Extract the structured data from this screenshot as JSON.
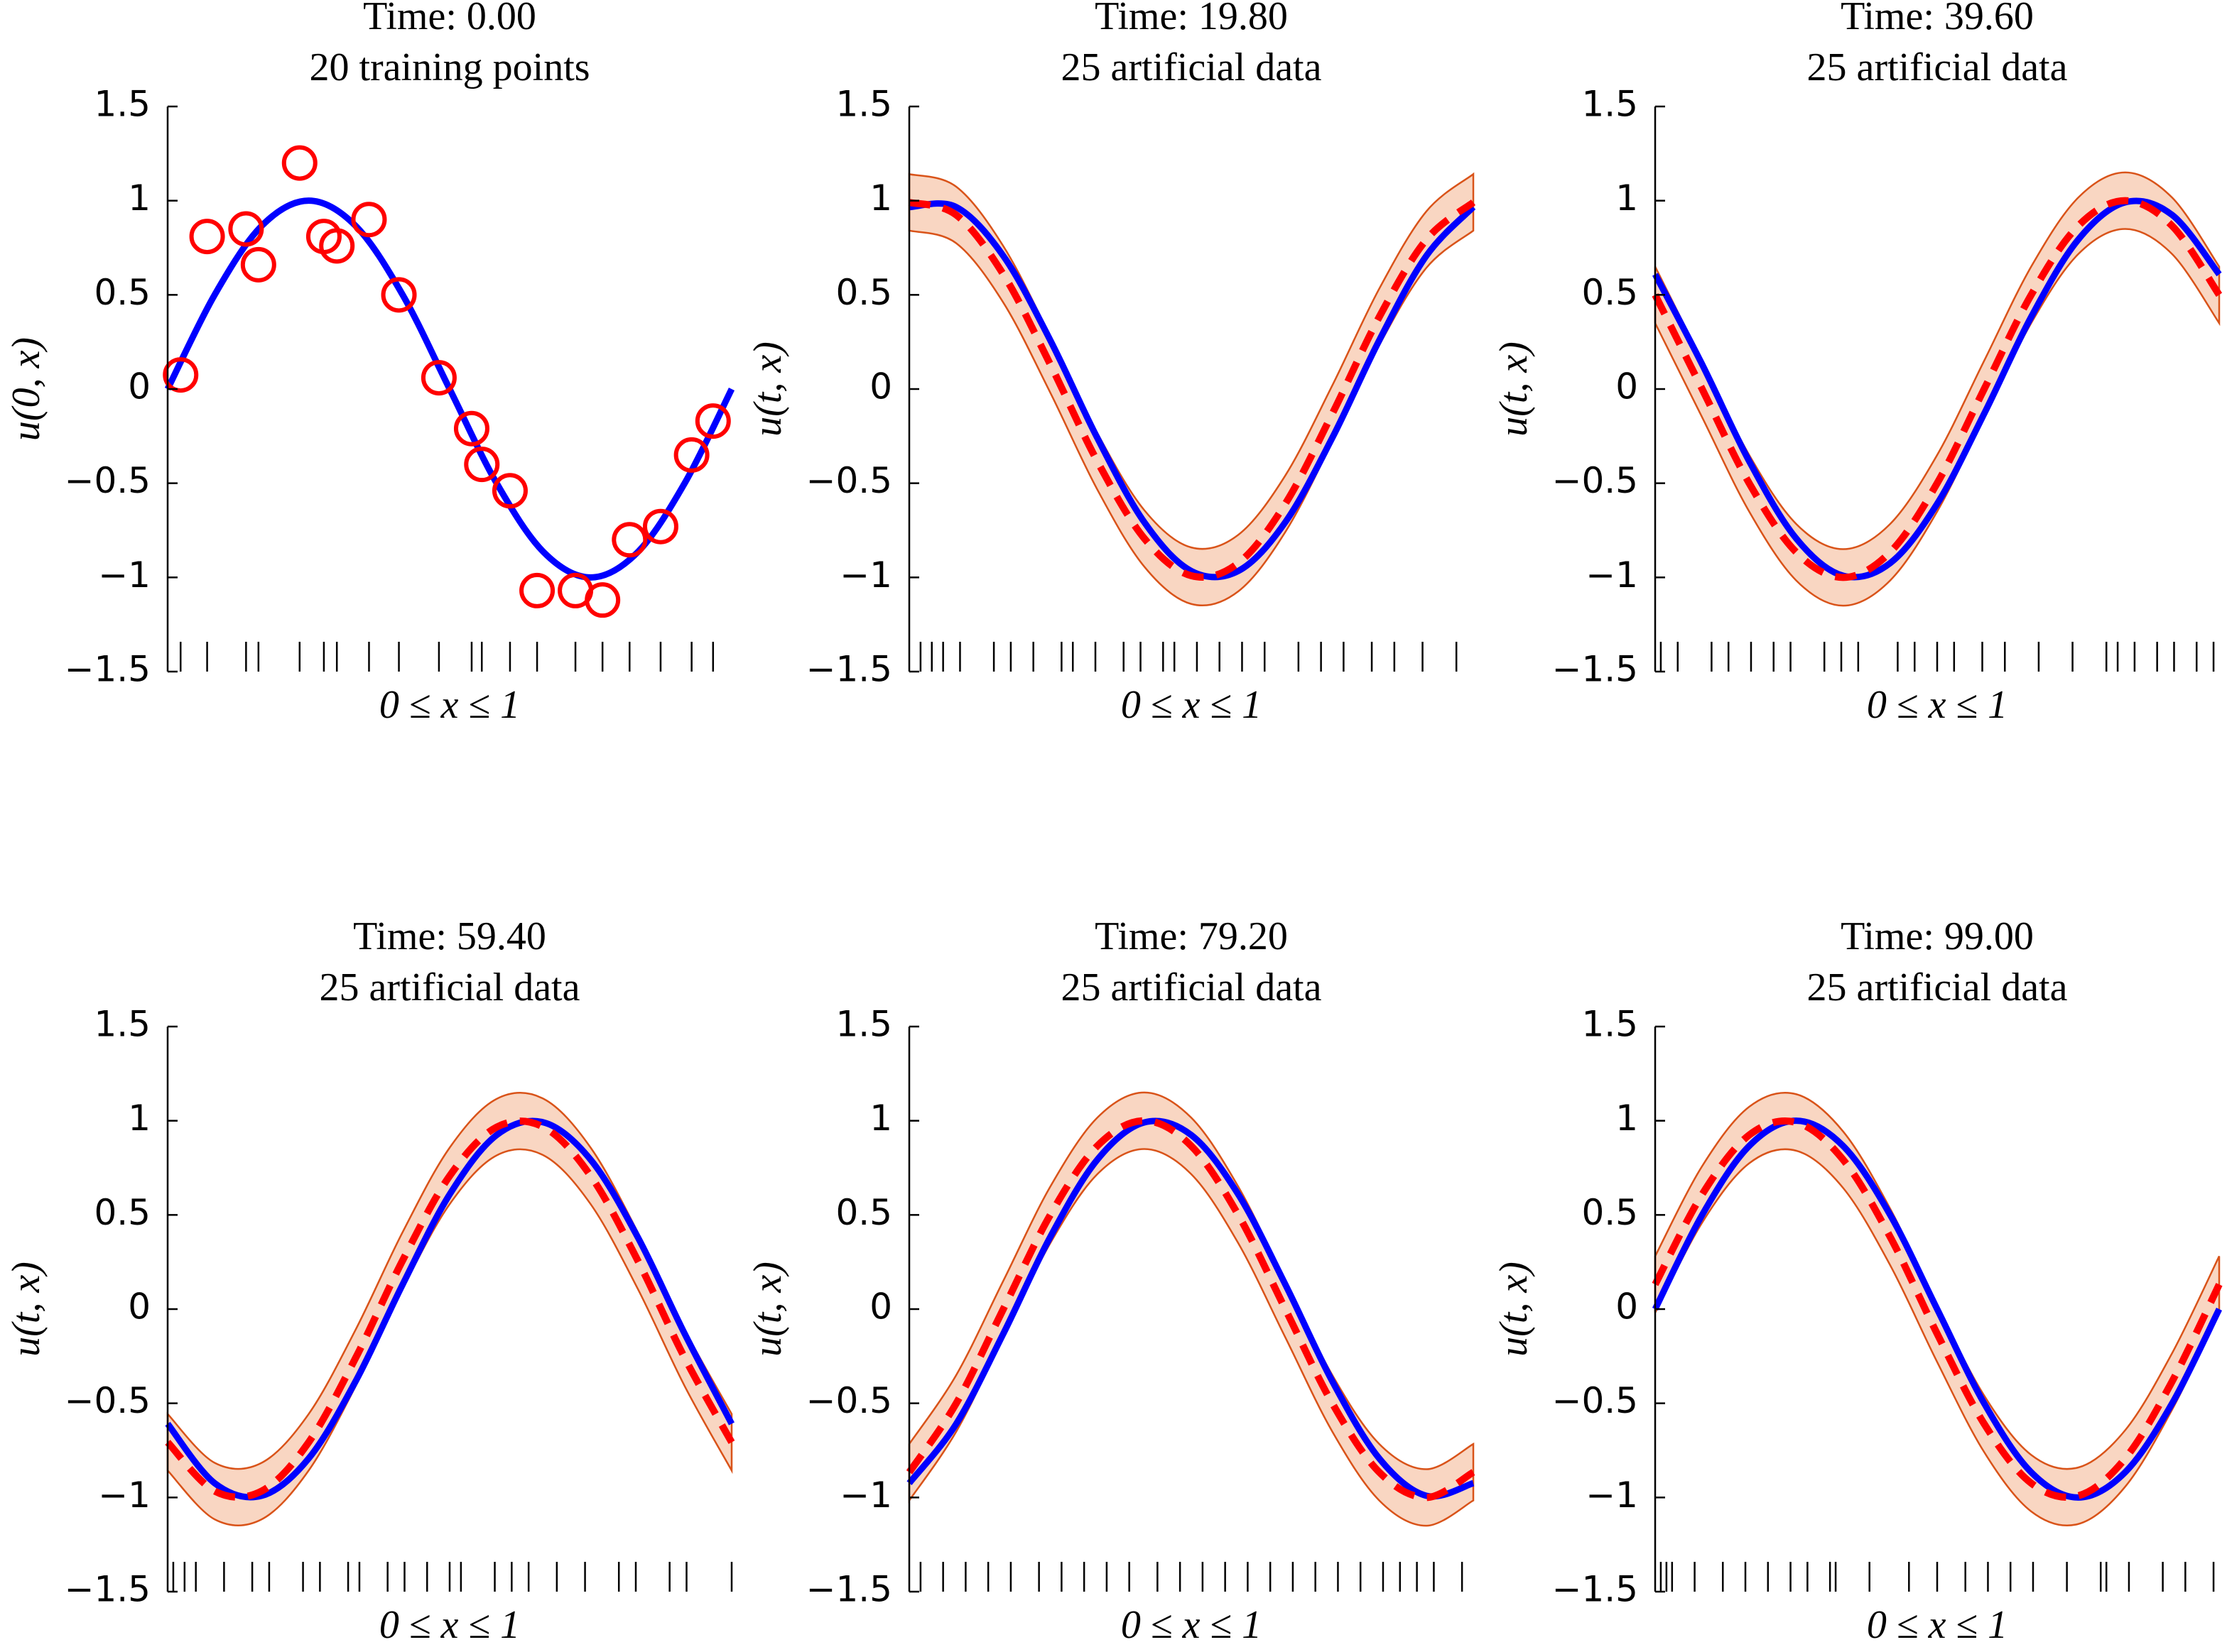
{
  "chart_data": [
    {
      "type": "line",
      "title": "Time: 0.00",
      "subtitle": "20 training points",
      "ylabel": "u(0, x)",
      "xlabel": "0 ≤ x ≤ 1",
      "xlim": [
        0,
        1
      ],
      "ylim": [
        -1.5,
        1.5
      ],
      "yticks": [
        {
          "value": -1.5,
          "label": "−1.5"
        },
        {
          "value": -1,
          "label": "−1"
        },
        {
          "value": -0.5,
          "label": "−0.5"
        },
        0,
        0.5,
        1,
        1.5
      ],
      "x": [
        0,
        0.0833,
        0.1667,
        0.25,
        0.3333,
        0.4167,
        0.5,
        0.5833,
        0.6667,
        0.75,
        0.8333,
        0.9167,
        1
      ],
      "series": [
        {
          "color": "#0000ff",
          "linestyle": "solid",
          "values": [
            0,
            0.5,
            0.866,
            1,
            0.866,
            0.5,
            0,
            -0.5,
            -0.866,
            -1,
            -0.866,
            -0.5,
            0
          ]
        }
      ],
      "points": {
        "color": "#ff0000",
        "x": [
          0.023,
          0.07,
          0.139,
          0.161,
          0.234,
          0.277,
          0.3,
          0.357,
          0.41,
          0.481,
          0.539,
          0.557,
          0.607,
          0.655,
          0.723,
          0.771,
          0.819,
          0.874,
          0.929,
          0.967
        ],
        "values": [
          0.075,
          0.81,
          0.85,
          0.66,
          1.2,
          0.81,
          0.76,
          0.9,
          0.5,
          0.06,
          -0.21,
          -0.4,
          -0.54,
          -1.07,
          -1.07,
          -1.12,
          -0.8,
          -0.73,
          -0.35,
          -0.17
        ]
      }
    },
    {
      "type": "line",
      "title": "Time: 19.80",
      "subtitle": "25 artificial data",
      "ylabel": "u(t, x)",
      "xlabel": "0 ≤ x ≤ 1",
      "xlim": [
        0,
        1
      ],
      "ylim": [
        -1.5,
        1.5
      ],
      "yticks": [
        {
          "value": -1.5,
          "label": "−1.5"
        },
        {
          "value": -1,
          "label": "−1"
        },
        {
          "value": -0.5,
          "label": "−0.5"
        },
        0,
        0.5,
        1,
        1.5
      ],
      "x": [
        0,
        0.0833,
        0.1667,
        0.25,
        0.3333,
        0.4167,
        0.5,
        0.5833,
        0.6667,
        0.75,
        0.8333,
        0.9167,
        1
      ],
      "band": {
        "color": "#f9d6c2",
        "edge": "#d95319",
        "upper": [
          1.141,
          1.074,
          0.759,
          0.281,
          -0.233,
          -0.643,
          -0.841,
          -0.774,
          -0.459,
          0.019,
          0.533,
          0.943,
          1.141
        ],
        "lower": [
          0.841,
          0.774,
          0.459,
          -0.019,
          -0.533,
          -0.943,
          -1.141,
          -1.074,
          -0.759,
          -0.281,
          0.233,
          0.643,
          0.841
        ]
      },
      "series": [
        {
          "color": "#0000ff",
          "linestyle": "solid",
          "values": [
            0.966,
            0.966,
            0.707,
            0.259,
            -0.259,
            -0.707,
            -0.966,
            -0.966,
            -0.707,
            -0.259,
            0.259,
            0.707,
            0.966
          ]
        },
        {
          "color": "#ff0000",
          "linestyle": "dashed",
          "values": [
            0.991,
            0.924,
            0.609,
            0.131,
            -0.383,
            -0.793,
            -0.991,
            -0.924,
            -0.609,
            -0.131,
            0.383,
            0.793,
            0.991
          ]
        }
      ],
      "rug_x": [
        0.02,
        0.04,
        0.06,
        0.09,
        0.15,
        0.18,
        0.22,
        0.27,
        0.29,
        0.33,
        0.38,
        0.41,
        0.45,
        0.47,
        0.51,
        0.55,
        0.59,
        0.63,
        0.69,
        0.73,
        0.77,
        0.82,
        0.86,
        0.91,
        0.97
      ]
    },
    {
      "type": "line",
      "title": "Time: 39.60",
      "subtitle": "25 artificial data",
      "ylabel": "u(t, x)",
      "xlabel": "0 ≤ x ≤ 1",
      "xlim": [
        0,
        1
      ],
      "ylim": [
        -1.5,
        1.5
      ],
      "yticks": [
        {
          "value": -1.5,
          "label": "−1.5"
        },
        {
          "value": -1,
          "label": "−1"
        },
        {
          "value": -0.5,
          "label": "−0.5"
        },
        0,
        0.5,
        1,
        1.5
      ],
      "x": [
        0,
        0.0833,
        0.1667,
        0.25,
        0.3333,
        0.4167,
        0.5,
        0.5833,
        0.6667,
        0.75,
        0.8333,
        0.9167,
        1
      ],
      "band": {
        "color": "#f9d6c2",
        "edge": "#d95319",
        "upper": [
          0.65,
          0.15,
          -0.35,
          -0.716,
          -0.85,
          -0.716,
          -0.35,
          0.15,
          0.65,
          1.016,
          1.15,
          1.016,
          0.65
        ],
        "lower": [
          0.35,
          -0.15,
          -0.65,
          -1.016,
          -1.15,
          -1.016,
          -0.65,
          -0.15,
          0.35,
          0.716,
          0.85,
          0.716,
          0.35
        ]
      },
      "series": [
        {
          "color": "#0000ff",
          "linestyle": "solid",
          "values": [
            0.609,
            0.131,
            -0.383,
            -0.793,
            -0.991,
            -0.924,
            -0.609,
            -0.131,
            0.383,
            0.793,
            0.991,
            0.924,
            0.609
          ]
        },
        {
          "color": "#ff0000",
          "linestyle": "dashed",
          "values": [
            0.5,
            0,
            -0.5,
            -0.866,
            -1,
            -0.866,
            -0.5,
            0,
            0.5,
            0.866,
            1,
            0.866,
            0.5
          ]
        }
      ],
      "rug_x": [
        0.01,
        0.04,
        0.1,
        0.13,
        0.17,
        0.21,
        0.24,
        0.3,
        0.33,
        0.36,
        0.43,
        0.46,
        0.5,
        0.53,
        0.58,
        0.62,
        0.68,
        0.74,
        0.8,
        0.82,
        0.85,
        0.89,
        0.92,
        0.96,
        0.99
      ]
    },
    {
      "type": "line",
      "title": "Time: 59.40",
      "subtitle": "25 artificial data",
      "ylabel": "u(t, x)",
      "xlabel": "0 ≤ x ≤ 1",
      "xlim": [
        0,
        1
      ],
      "ylim": [
        -1.5,
        1.5
      ],
      "yticks": [
        {
          "value": -1.5,
          "label": "−1.5"
        },
        {
          "value": -1,
          "label": "−1"
        },
        {
          "value": -0.5,
          "label": "−0.5"
        },
        0,
        0.5,
        1,
        1.5
      ],
      "x": [
        0,
        0.0833,
        0.1667,
        0.25,
        0.3333,
        0.4167,
        0.5,
        0.5833,
        0.6667,
        0.75,
        0.8333,
        0.9167,
        1
      ],
      "band": {
        "color": "#f9d6c2",
        "edge": "#d95319",
        "upper": [
          -0.557,
          -0.816,
          -0.816,
          -0.557,
          -0.109,
          0.409,
          0.857,
          1.116,
          1.116,
          0.857,
          0.409,
          -0.109,
          -0.557
        ],
        "lower": [
          -0.857,
          -1.116,
          -1.116,
          -0.857,
          -0.409,
          0.109,
          0.557,
          0.816,
          0.816,
          0.557,
          0.109,
          -0.409,
          -0.857
        ]
      },
      "series": [
        {
          "color": "#0000ff",
          "linestyle": "solid",
          "values": [
            -0.609,
            -0.924,
            -0.991,
            -0.793,
            -0.383,
            0.131,
            0.609,
            0.924,
            0.991,
            0.793,
            0.383,
            -0.131,
            -0.609
          ]
        },
        {
          "color": "#ff0000",
          "linestyle": "dashed",
          "values": [
            -0.707,
            -0.966,
            -0.966,
            -0.707,
            -0.259,
            0.259,
            0.707,
            0.966,
            0.966,
            0.707,
            0.259,
            -0.259,
            -0.707
          ]
        }
      ],
      "rug_x": [
        0.01,
        0.03,
        0.05,
        0.1,
        0.15,
        0.18,
        0.24,
        0.27,
        0.32,
        0.34,
        0.39,
        0.42,
        0.46,
        0.5,
        0.52,
        0.58,
        0.61,
        0.64,
        0.69,
        0.74,
        0.8,
        0.83,
        0.89,
        0.92,
        1
      ]
    },
    {
      "type": "line",
      "title": "Time: 79.20",
      "subtitle": "25 artificial data",
      "ylabel": "u(t, x)",
      "xlabel": "0 ≤ x ≤ 1",
      "xlim": [
        0,
        1
      ],
      "ylim": [
        -1.5,
        1.5
      ],
      "yticks": [
        {
          "value": -1.5,
          "label": "−1.5"
        },
        {
          "value": -1,
          "label": "−1"
        },
        {
          "value": -0.5,
          "label": "−0.5"
        },
        0,
        0.5,
        1,
        1.5
      ],
      "x": [
        0,
        0.0833,
        0.1667,
        0.25,
        0.3333,
        0.4167,
        0.5,
        0.5833,
        0.6667,
        0.75,
        0.8333,
        0.9167,
        1
      ],
      "band": {
        "color": "#f9d6c2",
        "edge": "#d95319",
        "upper": [
          -0.716,
          -0.35,
          0.15,
          0.65,
          1.016,
          1.15,
          1.016,
          0.65,
          0.15,
          -0.35,
          -0.716,
          -0.85,
          -0.716
        ],
        "lower": [
          -1.016,
          -0.65,
          -0.15,
          0.35,
          0.716,
          0.85,
          0.716,
          0.35,
          -0.15,
          -0.65,
          -1.016,
          -1.15,
          -1.016
        ]
      },
      "series": [
        {
          "color": "#0000ff",
          "linestyle": "solid",
          "values": [
            -0.924,
            -0.609,
            -0.131,
            0.383,
            0.793,
            0.991,
            0.924,
            0.609,
            0.131,
            -0.383,
            -0.793,
            -0.991,
            -0.924
          ]
        },
        {
          "color": "#ff0000",
          "linestyle": "dashed",
          "values": [
            -0.866,
            -0.5,
            0,
            0.5,
            0.866,
            1,
            0.866,
            0.5,
            0,
            -0.5,
            -0.866,
            -1,
            -0.866
          ]
        }
      ],
      "rug_x": [
        0.02,
        0.06,
        0.1,
        0.14,
        0.18,
        0.23,
        0.27,
        0.31,
        0.35,
        0.39,
        0.44,
        0.48,
        0.52,
        0.56,
        0.6,
        0.64,
        0.68,
        0.72,
        0.76,
        0.8,
        0.84,
        0.87,
        0.9,
        0.93,
        0.98
      ]
    },
    {
      "type": "line",
      "title": "Time: 99.00",
      "subtitle": "25 artificial data",
      "ylabel": "u(t, x)",
      "xlabel": "0 ≤ x ≤ 1",
      "xlim": [
        0,
        1
      ],
      "ylim": [
        -1.5,
        1.5
      ],
      "yticks": [
        {
          "value": -1.5,
          "label": "−1.5"
        },
        {
          "value": -1,
          "label": "−1"
        },
        {
          "value": -0.5,
          "label": "−0.5"
        },
        0,
        0.5,
        1,
        1.5
      ],
      "x": [
        0,
        0.0833,
        0.1667,
        0.25,
        0.3333,
        0.4167,
        0.5,
        0.5833,
        0.6667,
        0.75,
        0.8333,
        0.9167,
        1
      ],
      "band": {
        "color": "#f9d6c2",
        "edge": "#d95319",
        "upper": [
          0.281,
          0.759,
          1.074,
          1.141,
          0.943,
          0.533,
          0.019,
          -0.459,
          -0.774,
          -0.841,
          -0.643,
          -0.233,
          0.281
        ],
        "lower": [
          -0.019,
          0.459,
          0.774,
          0.841,
          0.643,
          0.233,
          -0.281,
          -0.759,
          -1.074,
          -1.141,
          -0.943,
          -0.533,
          -0.019
        ]
      },
      "series": [
        {
          "color": "#0000ff",
          "linestyle": "solid",
          "values": [
            0,
            0.5,
            0.866,
            1,
            0.866,
            0.5,
            0,
            -0.5,
            -0.866,
            -1,
            -0.866,
            -0.5,
            0
          ]
        },
        {
          "color": "#ff0000",
          "linestyle": "dashed",
          "values": [
            0.131,
            0.609,
            0.924,
            0.991,
            0.793,
            0.383,
            -0.131,
            -0.609,
            -0.924,
            -0.991,
            -0.793,
            -0.383,
            0.131
          ]
        }
      ],
      "rug_x": [
        0.01,
        0.02,
        0.03,
        0.07,
        0.12,
        0.16,
        0.2,
        0.24,
        0.27,
        0.31,
        0.32,
        0.38,
        0.45,
        0.5,
        0.55,
        0.59,
        0.63,
        0.67,
        0.73,
        0.79,
        0.8,
        0.84,
        0.9,
        0.94,
        0.99
      ]
    }
  ]
}
